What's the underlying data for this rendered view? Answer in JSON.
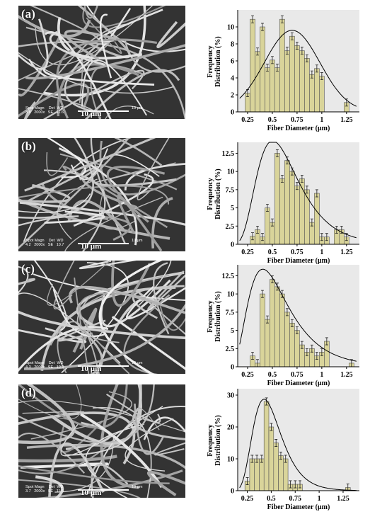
{
  "panels": [
    {
      "label": "(a)",
      "meta": "Spot Magn    Det  WD\n3.8   2000x   SE   11.6",
      "scale_small": "10 µm"
    },
    {
      "label": "(b)",
      "meta": "Spot Magn    Det  WD\n4.2   2000x   SE   10.7",
      "scale_small": "10 µm"
    },
    {
      "label": "(c)",
      "meta": "Spot Magn    Det  WD\n4.3   2000x   SE   10.9",
      "scale_small": "10 µm"
    },
    {
      "label": "(d)",
      "meta": "Spot Magn    Det  WD\n3.7   2000x   SE   11.4",
      "scale_small": "10 µm"
    }
  ],
  "scalebar_label": "10 µm",
  "ylabel_line1": "Frequency",
  "ylabel_line2": "Distribution (%)",
  "xlabel": "Fiber Diameter (µm)",
  "colors": {
    "bar": "#d9d49a",
    "bar_edge": "#555555",
    "plot_bg": "#e9e9e9",
    "curve": "#000000"
  },
  "chart_data": [
    {
      "type": "bar",
      "title": "",
      "xlabel": "Fiber Diameter (µm)",
      "ylabel": "Frequency Distribution (%)",
      "xlim": [
        0.15,
        1.38
      ],
      "ylim": [
        0,
        12
      ],
      "xticks": [
        0.25,
        0.5,
        0.75,
        1,
        1.25
      ],
      "xtick_labels": [
        "0.25",
        "0.5",
        "0.75",
        "1",
        "1.25"
      ],
      "yticks": [
        0,
        2,
        4,
        6,
        8,
        10
      ],
      "ytick_labels": [
        "0",
        "2",
        "4",
        "6",
        "8",
        "10"
      ],
      "bin_width": 0.05,
      "x": [
        0.25,
        0.3,
        0.35,
        0.4,
        0.45,
        0.5,
        0.55,
        0.6,
        0.65,
        0.7,
        0.75,
        0.8,
        0.85,
        0.9,
        0.95,
        1.0,
        1.05,
        1.1,
        1.15,
        1.2,
        1.25,
        1.3
      ],
      "values": [
        2.2,
        10.9,
        7.1,
        10.0,
        5.2,
        6.1,
        5.2,
        10.9,
        7.2,
        8.9,
        7.8,
        7.2,
        6.3,
        4.4,
        5.1,
        4.2,
        0,
        0,
        0,
        0,
        1.1,
        0
      ],
      "fit_peak": 9.6,
      "fit_mu": 0.7,
      "fit_sigma": 0.28,
      "fit_kind": "gaussian"
    },
    {
      "type": "bar",
      "title": "",
      "xlabel": "Fiber Diameter (µm)",
      "ylabel": "Frequency Distribution (%)",
      "xlim": [
        0.15,
        1.38
      ],
      "ylim": [
        0,
        14
      ],
      "xticks": [
        0.25,
        0.5,
        0.75,
        1,
        1.25
      ],
      "xtick_labels": [
        "0.25",
        "0.5",
        "0.75",
        "1",
        "1.25"
      ],
      "yticks": [
        0,
        2.5,
        5,
        7.5,
        10,
        12.5
      ],
      "ytick_labels": [
        "0",
        "2.5",
        "5",
        "7.5",
        "10",
        "12.5"
      ],
      "bin_width": 0.05,
      "x": [
        0.3,
        0.35,
        0.4,
        0.45,
        0.5,
        0.55,
        0.6,
        0.65,
        0.7,
        0.75,
        0.8,
        0.85,
        0.9,
        0.95,
        1.0,
        1.05,
        1.1,
        1.15,
        1.2,
        1.25,
        1.3
      ],
      "values": [
        1.1,
        2.0,
        1.0,
        5.0,
        3.0,
        12.5,
        9.0,
        11.5,
        10.0,
        8.0,
        9.0,
        7.5,
        3.0,
        7.0,
        1.0,
        1.0,
        0,
        2.0,
        2.0,
        1.0,
        0
      ],
      "fit_peak": 13.0,
      "fit_mu": 0.6,
      "fit_sigma": 0.3,
      "fit_kind": "lognormal"
    },
    {
      "type": "bar",
      "title": "",
      "xlabel": "Fiber Diameter (µm)",
      "ylabel": "Frequency Distribution (%)",
      "xlim": [
        0.15,
        1.38
      ],
      "ylim": [
        0,
        14
      ],
      "xticks": [
        0.25,
        0.5,
        0.75,
        1,
        1.25
      ],
      "xtick_labels": [
        "0.25",
        "0.5",
        "0.75",
        "1",
        "1.25"
      ],
      "yticks": [
        0,
        2.5,
        5,
        7.5,
        10,
        12.5
      ],
      "ytick_labels": [
        "0",
        "2.5",
        "5",
        "7.5",
        "10",
        "12.5"
      ],
      "bin_width": 0.05,
      "x": [
        0.25,
        0.3,
        0.35,
        0.4,
        0.45,
        0.5,
        0.55,
        0.6,
        0.65,
        0.7,
        0.75,
        0.8,
        0.85,
        0.9,
        0.95,
        1.0,
        1.05,
        1.1,
        1.15,
        1.2,
        1.25,
        1.3
      ],
      "values": [
        0,
        1.5,
        0.5,
        10.0,
        6.5,
        12.0,
        11.0,
        10.0,
        7.5,
        6.0,
        5.0,
        3.0,
        2.0,
        2.5,
        1.5,
        2.0,
        3.5,
        0,
        0,
        0,
        0,
        0.5
      ],
      "fit_peak": 11.8,
      "fit_mu": 0.52,
      "fit_sigma": 0.36,
      "fit_kind": "lognormal"
    },
    {
      "type": "bar",
      "title": "",
      "xlabel": "Fiber Diameter (µm)",
      "ylabel": "Frequency Distribution (%)",
      "xlim": [
        0.15,
        1.42
      ],
      "ylim": [
        0,
        32
      ],
      "xticks": [
        0.25,
        0.5,
        0.75,
        1,
        1.25
      ],
      "xtick_labels": [
        "0.25",
        "0.5",
        "0.75",
        "1",
        "1.25"
      ],
      "yticks": [
        0,
        10,
        20,
        30
      ],
      "ytick_labels": [
        "0",
        "10",
        "20",
        "30"
      ],
      "bin_width": 0.05,
      "x": [
        0.25,
        0.3,
        0.35,
        0.4,
        0.45,
        0.5,
        0.55,
        0.6,
        0.65,
        0.7,
        0.75,
        0.8,
        0.85,
        0.9,
        0.95,
        1.0,
        1.05,
        1.1,
        1.15,
        1.2,
        1.25,
        1.3,
        1.35
      ],
      "values": [
        3.0,
        10.0,
        10.0,
        10.0,
        28.0,
        20.0,
        15.0,
        11.0,
        10.0,
        2.0,
        2.0,
        2.0,
        0,
        0,
        0,
        0,
        0,
        0,
        0,
        0,
        0,
        1.0,
        0
      ],
      "fit_peak": 27.0,
      "fit_mu": 0.48,
      "fit_sigma": 0.25,
      "fit_kind": "lognormal"
    }
  ]
}
